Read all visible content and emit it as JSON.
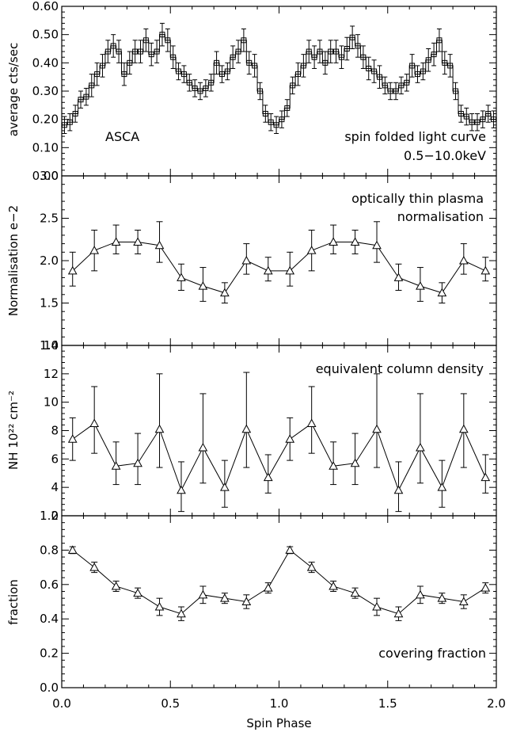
{
  "x_axis": {
    "label": "Spin Phase",
    "ticks": [
      "0.0",
      "0.5",
      "1.0",
      "1.5",
      "2.0"
    ],
    "range": [
      0.0,
      2.0
    ]
  },
  "chart_data": [
    {
      "type": "line",
      "style": "histogram-step",
      "ylabel": "average cts/sec",
      "ylim": [
        0.0,
        0.6
      ],
      "yticks": [
        "0.00",
        "0.10",
        "0.20",
        "0.30",
        "0.40",
        "0.50",
        "0.60"
      ],
      "annotations": [
        "ASCA",
        "spin folded light curve",
        "0.5−10.0keV"
      ],
      "x": [
        0.0125,
        0.0375,
        0.0625,
        0.0875,
        0.1125,
        0.1375,
        0.1625,
        0.1875,
        0.2125,
        0.2375,
        0.2625,
        0.2875,
        0.3125,
        0.3375,
        0.3625,
        0.3875,
        0.4125,
        0.4375,
        0.4625,
        0.4875,
        0.5125,
        0.5375,
        0.5625,
        0.5875,
        0.6125,
        0.6375,
        0.6625,
        0.6875,
        0.7125,
        0.7375,
        0.7625,
        0.7875,
        0.8125,
        0.8375,
        0.8625,
        0.8875,
        0.9125,
        0.9375,
        0.9625,
        0.9875,
        1.0125,
        1.0375,
        1.0625,
        1.0875,
        1.1125,
        1.1375,
        1.1625,
        1.1875,
        1.2125,
        1.2375,
        1.2625,
        1.2875,
        1.3125,
        1.3375,
        1.3625,
        1.3875,
        1.4125,
        1.4375,
        1.4625,
        1.4875,
        1.5125,
        1.5375,
        1.5625,
        1.5875,
        1.6125,
        1.6375,
        1.6625,
        1.6875,
        1.7125,
        1.7375,
        1.7625,
        1.7875,
        1.8125,
        1.8375,
        1.8625,
        1.8875,
        1.9125,
        1.9375,
        1.9625,
        1.9875
      ],
      "y": [
        0.18,
        0.19,
        0.22,
        0.27,
        0.28,
        0.32,
        0.36,
        0.39,
        0.44,
        0.46,
        0.44,
        0.36,
        0.4,
        0.44,
        0.44,
        0.48,
        0.43,
        0.44,
        0.5,
        0.48,
        0.42,
        0.37,
        0.36,
        0.33,
        0.31,
        0.3,
        0.31,
        0.33,
        0.4,
        0.36,
        0.37,
        0.42,
        0.44,
        0.48,
        0.4,
        0.39,
        0.3,
        0.22,
        0.19,
        0.18,
        0.2,
        0.24,
        0.32,
        0.36,
        0.39,
        0.44,
        0.42,
        0.44,
        0.4,
        0.44,
        0.44,
        0.42,
        0.45,
        0.49,
        0.46,
        0.42,
        0.38,
        0.37,
        0.35,
        0.32,
        0.3,
        0.3,
        0.32,
        0.33,
        0.39,
        0.36,
        0.37,
        0.41,
        0.43,
        0.48,
        0.4,
        0.39,
        0.3,
        0.22,
        0.21,
        0.19,
        0.19,
        0.2,
        0.22,
        0.2
      ],
      "yerr": [
        0.03,
        0.03,
        0.03,
        0.03,
        0.03,
        0.04,
        0.04,
        0.04,
        0.04,
        0.04,
        0.04,
        0.04,
        0.04,
        0.04,
        0.04,
        0.04,
        0.04,
        0.04,
        0.04,
        0.04,
        0.04,
        0.03,
        0.03,
        0.03,
        0.03,
        0.03,
        0.03,
        0.03,
        0.04,
        0.03,
        0.03,
        0.04,
        0.04,
        0.04,
        0.04,
        0.04,
        0.03,
        0.03,
        0.03,
        0.03,
        0.03,
        0.03,
        0.03,
        0.04,
        0.04,
        0.04,
        0.04,
        0.04,
        0.04,
        0.04,
        0.04,
        0.04,
        0.04,
        0.04,
        0.04,
        0.04,
        0.04,
        0.04,
        0.04,
        0.03,
        0.03,
        0.03,
        0.03,
        0.03,
        0.04,
        0.03,
        0.03,
        0.04,
        0.04,
        0.04,
        0.04,
        0.04,
        0.03,
        0.03,
        0.03,
        0.03,
        0.03,
        0.03,
        0.03,
        0.03
      ]
    },
    {
      "type": "line",
      "marker": "triangle",
      "ylabel": "Normalisation e−2",
      "ylim": [
        1.0,
        3.0
      ],
      "yticks": [
        "1.0",
        "1.5",
        "2.0",
        "2.5",
        "3.0"
      ],
      "annotations": [
        "optically thin plasma",
        "normalisation"
      ],
      "x": [
        0.05,
        0.15,
        0.25,
        0.35,
        0.45,
        0.55,
        0.65,
        0.75,
        0.85,
        0.95,
        1.05,
        1.15,
        1.25,
        1.35,
        1.45,
        1.55,
        1.65,
        1.75,
        1.85,
        1.95
      ],
      "y": [
        1.88,
        2.12,
        2.22,
        2.22,
        2.18,
        1.8,
        1.7,
        1.62,
        2.0,
        1.88,
        1.88,
        2.12,
        2.22,
        2.22,
        2.18,
        1.8,
        1.7,
        1.62,
        2.0,
        1.88
      ],
      "yerr_low": [
        0.18,
        0.24,
        0.14,
        0.14,
        0.2,
        0.15,
        0.18,
        0.12,
        0.16,
        0.12,
        0.18,
        0.24,
        0.14,
        0.14,
        0.2,
        0.15,
        0.18,
        0.12,
        0.16,
        0.12
      ],
      "yerr_high": [
        0.22,
        0.24,
        0.2,
        0.14,
        0.28,
        0.16,
        0.22,
        0.12,
        0.2,
        0.16,
        0.22,
        0.24,
        0.2,
        0.14,
        0.28,
        0.16,
        0.22,
        0.12,
        0.2,
        0.16
      ]
    },
    {
      "type": "line",
      "marker": "triangle",
      "ylabel": "NH 10²² cm⁻²",
      "ylim": [
        2,
        14
      ],
      "yticks": [
        "2",
        "4",
        "6",
        "8",
        "10",
        "12",
        "14"
      ],
      "annotations": [
        "equivalent column density"
      ],
      "x": [
        0.05,
        0.15,
        0.25,
        0.35,
        0.45,
        0.55,
        0.65,
        0.75,
        0.85,
        0.95,
        1.05,
        1.15,
        1.25,
        1.35,
        1.45,
        1.55,
        1.65,
        1.75,
        1.85,
        1.95
      ],
      "y": [
        7.4,
        8.5,
        5.5,
        5.7,
        8.1,
        3.8,
        6.8,
        4.0,
        8.1,
        4.7,
        7.4,
        8.5,
        5.5,
        5.7,
        8.1,
        3.8,
        6.8,
        4.0,
        8.1,
        4.7
      ],
      "yerr_low": [
        1.5,
        2.1,
        1.3,
        1.5,
        2.7,
        1.5,
        2.5,
        1.4,
        2.7,
        1.1,
        1.5,
        2.1,
        1.3,
        1.5,
        2.7,
        1.5,
        2.5,
        1.4,
        2.7,
        1.1
      ],
      "yerr_high": [
        1.5,
        2.6,
        1.7,
        2.1,
        3.9,
        2.0,
        3.8,
        1.9,
        4.0,
        1.6,
        1.5,
        2.6,
        1.7,
        2.1,
        3.9,
        2.0,
        3.8,
        1.9,
        2.5,
        1.6
      ]
    },
    {
      "type": "line",
      "marker": "triangle",
      "ylabel": "fraction",
      "ylim": [
        0.0,
        1.0
      ],
      "yticks": [
        "0.0",
        "0.2",
        "0.4",
        "0.6",
        "0.8",
        "1.0"
      ],
      "annotations": [
        "covering fraction"
      ],
      "x": [
        0.05,
        0.15,
        0.25,
        0.35,
        0.45,
        0.55,
        0.65,
        0.75,
        0.85,
        0.95,
        1.05,
        1.15,
        1.25,
        1.35,
        1.45,
        1.55,
        1.65,
        1.75,
        1.85,
        1.95
      ],
      "y": [
        0.8,
        0.7,
        0.59,
        0.55,
        0.47,
        0.43,
        0.54,
        0.52,
        0.5,
        0.58,
        0.8,
        0.7,
        0.59,
        0.55,
        0.47,
        0.43,
        0.54,
        0.52,
        0.5,
        0.58
      ],
      "yerr": [
        0.02,
        0.03,
        0.03,
        0.03,
        0.05,
        0.04,
        0.05,
        0.03,
        0.04,
        0.03,
        0.02,
        0.03,
        0.03,
        0.03,
        0.05,
        0.04,
        0.05,
        0.03,
        0.04,
        0.03
      ]
    }
  ]
}
